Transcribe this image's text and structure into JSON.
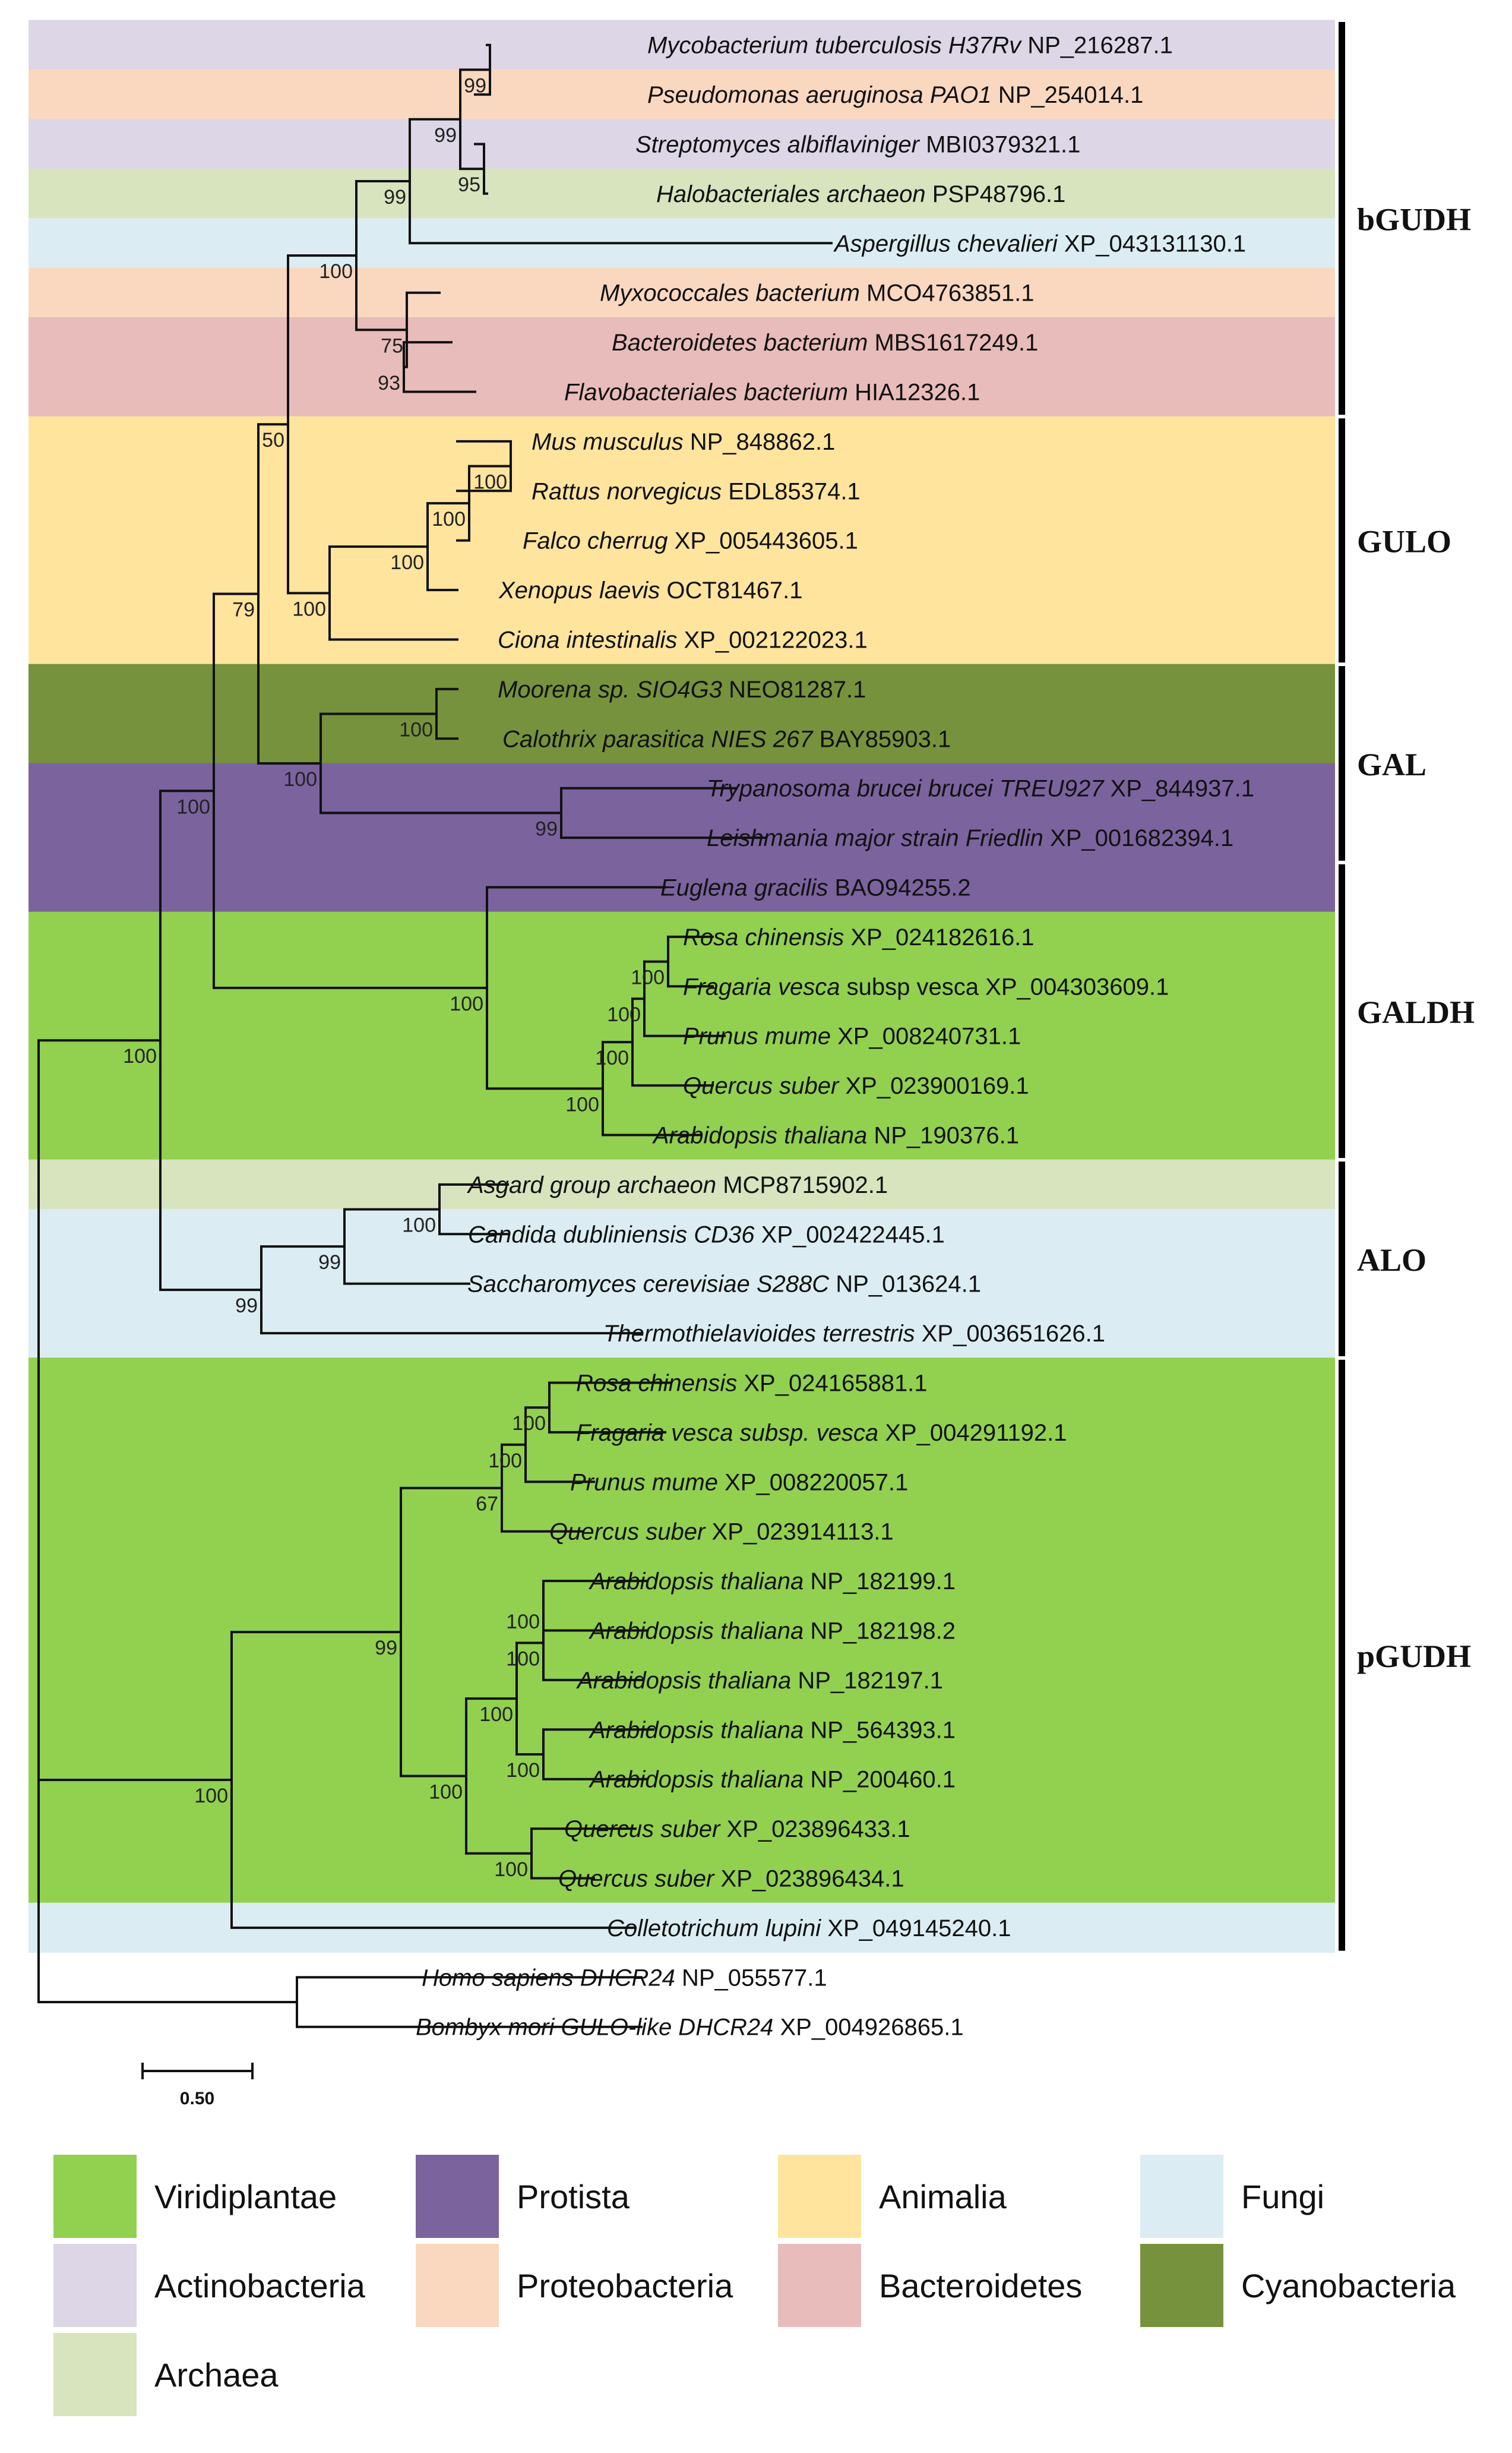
{
  "figure": {
    "scale_bar_label": "0.50",
    "clades": [
      {
        "name": "bGUDH"
      },
      {
        "name": "GULO"
      },
      {
        "name": "GAL"
      },
      {
        "name": "GALDH"
      },
      {
        "name": "ALO"
      },
      {
        "name": "pGUDH"
      }
    ],
    "leaves": [
      {
        "species": "Mycobacterium tuberculosis H37Rv",
        "accession": "NP_216287.1",
        "group": "Actinobacteria"
      },
      {
        "species": "Pseudomonas aeruginosa PAO1",
        "accession": "NP_254014.1",
        "group": "Proteobacteria"
      },
      {
        "species": "Streptomyces albiflaviniger",
        "accession": "MBI0379321.1",
        "group": "Actinobacteria"
      },
      {
        "species": "Halobacteriales archaeon",
        "accession": "PSP48796.1",
        "group": "Archaea"
      },
      {
        "species": "Aspergillus chevalieri",
        "accession": "XP_043131130.1",
        "group": "Fungi"
      },
      {
        "species": "Myxococcales bacterium",
        "accession": "MCO4763851.1",
        "group": "Proteobacteria"
      },
      {
        "species": "Bacteroidetes bacterium",
        "accession": "MBS1617249.1",
        "group": "Bacteroidetes"
      },
      {
        "species": "Flavobacteriales bacterium",
        "accession": "HIA12326.1",
        "group": "Bacteroidetes"
      },
      {
        "species": "Mus musculus",
        "accession": "NP_848862.1",
        "group": "Animalia"
      },
      {
        "species": "Rattus norvegicus",
        "accession": "EDL85374.1",
        "group": "Animalia"
      },
      {
        "species": "Falco cherrug",
        "accession": "XP_005443605.1",
        "group": "Animalia"
      },
      {
        "species": "Xenopus laevis",
        "accession": "OCT81467.1",
        "group": "Animalia"
      },
      {
        "species": "Ciona intestinalis",
        "accession": "XP_002122023.1",
        "group": "Animalia"
      },
      {
        "species": "Moorena sp. SIO4G3",
        "accession": "NEO81287.1",
        "group": "Cyanobacteria"
      },
      {
        "species": "Calothrix parasitica NIES 267",
        "accession": "BAY85903.1",
        "group": "Cyanobacteria"
      },
      {
        "species": "Trypanosoma brucei brucei TREU927",
        "accession": "XP_844937.1",
        "group": "Protista"
      },
      {
        "species": "Leishmania major strain Friedlin",
        "accession": "XP_001682394.1",
        "group": "Protista"
      },
      {
        "species": "Euglena gracilis",
        "accession": "BAO94255.2",
        "group": "Protista"
      },
      {
        "species": "Rosa chinensis",
        "accession": "XP_024182616.1",
        "group": "Viridiplantae"
      },
      {
        "species": "Fragaria vesca",
        "species_suffix": " subsp vesca",
        "accession": "XP_004303609.1",
        "group": "Viridiplantae"
      },
      {
        "species": "Prunus mume",
        "accession": "XP_008240731.1",
        "group": "Viridiplantae"
      },
      {
        "species": "Quercus suber",
        "accession": "XP_023900169.1",
        "group": "Viridiplantae"
      },
      {
        "species": "Arabidopsis thaliana",
        "accession": "NP_190376.1",
        "group": "Viridiplantae"
      },
      {
        "species": "Asgard group archaeon",
        "accession": "MCP8715902.1",
        "group": "Archaea"
      },
      {
        "species": "Candida dubliniensis CD36",
        "accession": "XP_002422445.1",
        "group": "Fungi"
      },
      {
        "species": "Saccharomyces cerevisiae S288C",
        "accession": "NP_013624.1",
        "group": "Fungi"
      },
      {
        "species": "Thermothielavioides terrestris",
        "accession": "XP_003651626.1",
        "group": "Fungi"
      },
      {
        "species": "Rosa chinensis",
        "accession": "XP_024165881.1",
        "group": "Viridiplantae"
      },
      {
        "species": "Fragaria vesca subsp. vesca",
        "accession": "XP_004291192.1",
        "group": "Viridiplantae"
      },
      {
        "species": "Prunus mume",
        "accession": "XP_008220057.1",
        "group": "Viridiplantae"
      },
      {
        "species": "Quercus suber",
        "accession": "XP_023914113.1",
        "group": "Viridiplantae"
      },
      {
        "species": "Arabidopsis thaliana",
        "accession": "NP_182199.1",
        "group": "Viridiplantae"
      },
      {
        "species": "Arabidopsis thaliana",
        "accession": "NP_182198.2",
        "group": "Viridiplantae"
      },
      {
        "species": "Arabidopsis thaliana",
        "accession": "NP_182197.1",
        "group": "Viridiplantae"
      },
      {
        "species": "Arabidopsis thaliana",
        "accession": "NP_564393.1",
        "group": "Viridiplantae"
      },
      {
        "species": "Arabidopsis thaliana",
        "accession": "NP_200460.1",
        "group": "Viridiplantae"
      },
      {
        "species": "Quercus suber",
        "accession": "XP_023896433.1",
        "group": "Viridiplantae"
      },
      {
        "species": "Quercus suber",
        "accession": "XP_023896434.1",
        "group": "Viridiplantae"
      },
      {
        "species": "Colletotrichum lupini",
        "accession": "XP_049145240.1",
        "group": "Fungi"
      },
      {
        "species": "Homo sapiens DHCR24",
        "accession": "NP_055577.1",
        "group": "None"
      },
      {
        "species": "Bombyx mori GULO-like DHCR24",
        "accession": "XP_004926865.1",
        "group": "None"
      }
    ],
    "bootstrap_values": [
      "99",
      "99",
      "95",
      "99",
      "100",
      "75",
      "93",
      "100",
      "100",
      "100",
      "100",
      "50",
      "100",
      "99",
      "100",
      "79",
      "100",
      "100",
      "100",
      "100",
      "100",
      "100",
      "100",
      "99",
      "99",
      "100",
      "100",
      "100",
      "67",
      "100",
      "100",
      "100",
      "100",
      "100",
      "100",
      "99",
      "100"
    ]
  },
  "legend": {
    "items": [
      {
        "label": "Viridiplantae",
        "color": "#92D050"
      },
      {
        "label": "Protista",
        "color": "#7B639E"
      },
      {
        "label": "Animalia",
        "color": "#FFE49E"
      },
      {
        "label": "Fungi",
        "color": "#DBEDF2"
      },
      {
        "label": "Actinobacteria",
        "color": "#DCD6E6"
      },
      {
        "label": "Proteobacteria",
        "color": "#FAD8C0"
      },
      {
        "label": "Bacteroidetes",
        "color": "#E8BCBA"
      },
      {
        "label": "Cyanobacteria",
        "color": "#76923C"
      },
      {
        "label": "Archaea",
        "color": "#D7E4BD"
      }
    ]
  }
}
